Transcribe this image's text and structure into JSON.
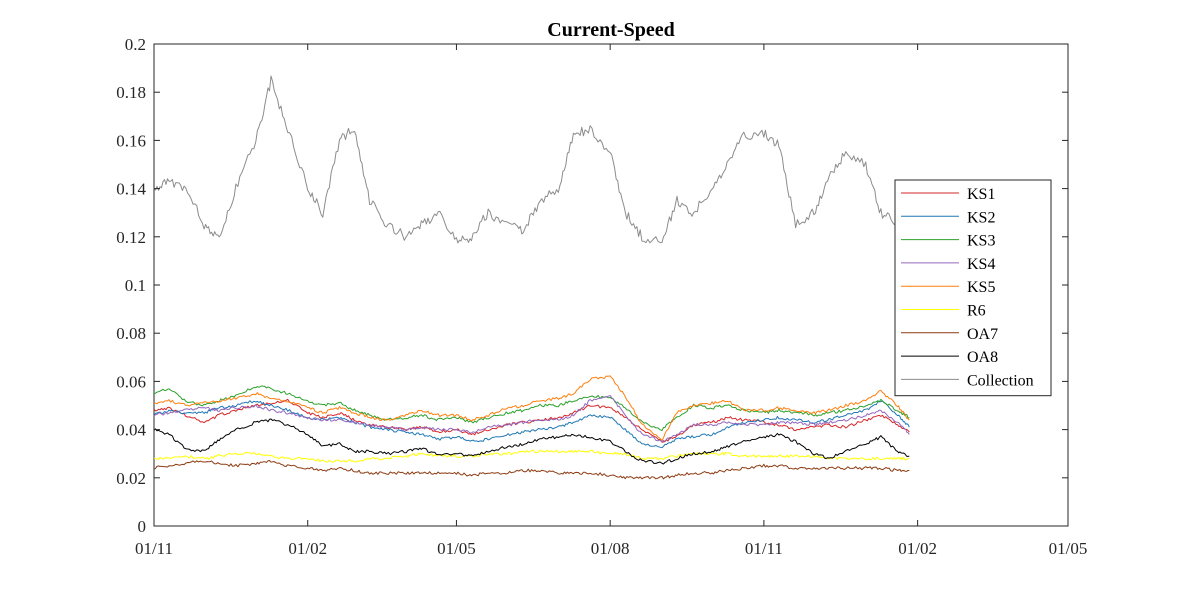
{
  "chart_data": {
    "type": "line",
    "title": "Current-Speed",
    "xlabel": "",
    "ylabel": "",
    "x_ticks": [
      "01/11",
      "01/02",
      "01/05",
      "01/08",
      "01/11",
      "01/02",
      "01/05"
    ],
    "y_ticks": [
      "0",
      "0.02",
      "0.04",
      "0.06",
      "0.08",
      "0.1",
      "0.12",
      "0.14",
      "0.16",
      "0.18",
      "0.2"
    ],
    "ylim": [
      0,
      0.2
    ],
    "xlim": [
      "01/11",
      "01/05"
    ],
    "grid": false,
    "legend_position": "right",
    "x": [
      "2018-11-01",
      "2018-11-10",
      "2018-11-20",
      "2018-12-01",
      "2018-12-10",
      "2018-12-20",
      "2019-01-01",
      "2019-01-10",
      "2019-01-20",
      "2019-02-01",
      "2019-02-10",
      "2019-02-20",
      "2019-03-01",
      "2019-03-10",
      "2019-03-20",
      "2019-04-01",
      "2019-04-10",
      "2019-04-20",
      "2019-05-01",
      "2019-05-10",
      "2019-05-20",
      "2019-06-01",
      "2019-06-10",
      "2019-06-20",
      "2019-07-01",
      "2019-07-10",
      "2019-07-20",
      "2019-08-01",
      "2019-08-10",
      "2019-08-20",
      "2019-09-01",
      "2019-09-10",
      "2019-09-20",
      "2019-10-01",
      "2019-10-10",
      "2019-10-20",
      "2019-11-01",
      "2019-11-10",
      "2019-11-20",
      "2019-12-01",
      "2019-12-10",
      "2019-12-20",
      "2020-01-01",
      "2020-01-10",
      "2020-01-20",
      "2020-01-27"
    ],
    "series": [
      {
        "name": "KS1",
        "color": "#d62728",
        "values": [
          0.048,
          0.049,
          0.046,
          0.043,
          0.046,
          0.048,
          0.05,
          0.051,
          0.052,
          0.047,
          0.045,
          0.047,
          0.044,
          0.042,
          0.041,
          0.04,
          0.041,
          0.039,
          0.04,
          0.038,
          0.04,
          0.042,
          0.043,
          0.044,
          0.045,
          0.047,
          0.05,
          0.049,
          0.045,
          0.04,
          0.035,
          0.037,
          0.042,
          0.043,
          0.045,
          0.044,
          0.043,
          0.042,
          0.04,
          0.041,
          0.042,
          0.041,
          0.044,
          0.046,
          0.042,
          0.039
        ]
      },
      {
        "name": "KS2",
        "color": "#1f77b4",
        "values": [
          0.046,
          0.048,
          0.047,
          0.047,
          0.049,
          0.05,
          0.052,
          0.05,
          0.048,
          0.045,
          0.044,
          0.045,
          0.043,
          0.041,
          0.04,
          0.039,
          0.038,
          0.036,
          0.037,
          0.035,
          0.036,
          0.038,
          0.039,
          0.04,
          0.041,
          0.043,
          0.046,
          0.045,
          0.04,
          0.034,
          0.033,
          0.036,
          0.037,
          0.038,
          0.041,
          0.043,
          0.044,
          0.045,
          0.044,
          0.043,
          0.044,
          0.046,
          0.048,
          0.052,
          0.046,
          0.041
        ]
      },
      {
        "name": "KS3",
        "color": "#2ca02c",
        "values": [
          0.055,
          0.057,
          0.052,
          0.05,
          0.052,
          0.054,
          0.058,
          0.057,
          0.055,
          0.052,
          0.05,
          0.051,
          0.048,
          0.046,
          0.044,
          0.045,
          0.046,
          0.044,
          0.045,
          0.043,
          0.045,
          0.047,
          0.048,
          0.05,
          0.05,
          0.052,
          0.054,
          0.053,
          0.049,
          0.043,
          0.04,
          0.045,
          0.05,
          0.049,
          0.05,
          0.048,
          0.047,
          0.048,
          0.047,
          0.046,
          0.047,
          0.048,
          0.05,
          0.052,
          0.048,
          0.045
        ]
      },
      {
        "name": "KS4",
        "color": "#9467bd",
        "values": [
          0.046,
          0.047,
          0.048,
          0.049,
          0.048,
          0.049,
          0.05,
          0.048,
          0.047,
          0.045,
          0.044,
          0.044,
          0.043,
          0.042,
          0.041,
          0.04,
          0.041,
          0.04,
          0.04,
          0.039,
          0.041,
          0.042,
          0.043,
          0.044,
          0.044,
          0.046,
          0.052,
          0.054,
          0.046,
          0.038,
          0.035,
          0.038,
          0.042,
          0.042,
          0.043,
          0.042,
          0.042,
          0.043,
          0.043,
          0.042,
          0.043,
          0.044,
          0.046,
          0.048,
          0.043,
          0.038
        ]
      },
      {
        "name": "KS5",
        "color": "#ff7f0e",
        "values": [
          0.051,
          0.052,
          0.05,
          0.051,
          0.052,
          0.053,
          0.055,
          0.053,
          0.052,
          0.049,
          0.047,
          0.049,
          0.047,
          0.045,
          0.044,
          0.046,
          0.048,
          0.046,
          0.046,
          0.044,
          0.046,
          0.049,
          0.05,
          0.052,
          0.053,
          0.055,
          0.061,
          0.062,
          0.054,
          0.042,
          0.036,
          0.047,
          0.05,
          0.051,
          0.052,
          0.048,
          0.048,
          0.049,
          0.048,
          0.047,
          0.048,
          0.05,
          0.052,
          0.056,
          0.05,
          0.044
        ]
      },
      {
        "name": "R6",
        "color": "#ffff00",
        "values": [
          0.028,
          0.028,
          0.029,
          0.028,
          0.029,
          0.03,
          0.03,
          0.029,
          0.028,
          0.028,
          0.027,
          0.027,
          0.027,
          0.028,
          0.028,
          0.029,
          0.03,
          0.029,
          0.029,
          0.029,
          0.03,
          0.03,
          0.031,
          0.031,
          0.031,
          0.031,
          0.031,
          0.03,
          0.03,
          0.028,
          0.028,
          0.029,
          0.03,
          0.03,
          0.03,
          0.029,
          0.029,
          0.029,
          0.029,
          0.029,
          0.028,
          0.028,
          0.028,
          0.028,
          0.028,
          0.028
        ]
      },
      {
        "name": "OA7",
        "color": "#8c3b12",
        "values": [
          0.024,
          0.025,
          0.026,
          0.027,
          0.026,
          0.025,
          0.026,
          0.027,
          0.025,
          0.024,
          0.023,
          0.024,
          0.023,
          0.022,
          0.022,
          0.022,
          0.022,
          0.022,
          0.022,
          0.021,
          0.022,
          0.022,
          0.023,
          0.023,
          0.022,
          0.022,
          0.022,
          0.021,
          0.02,
          0.02,
          0.02,
          0.021,
          0.022,
          0.022,
          0.023,
          0.024,
          0.025,
          0.025,
          0.024,
          0.024,
          0.024,
          0.024,
          0.024,
          0.024,
          0.023,
          0.023
        ]
      },
      {
        "name": "OA8",
        "color": "#000000",
        "values": [
          0.04,
          0.038,
          0.032,
          0.031,
          0.036,
          0.04,
          0.043,
          0.044,
          0.042,
          0.038,
          0.033,
          0.034,
          0.031,
          0.031,
          0.03,
          0.031,
          0.032,
          0.03,
          0.03,
          0.029,
          0.031,
          0.033,
          0.034,
          0.036,
          0.037,
          0.038,
          0.037,
          0.035,
          0.031,
          0.027,
          0.026,
          0.028,
          0.03,
          0.031,
          0.033,
          0.035,
          0.037,
          0.038,
          0.035,
          0.03,
          0.028,
          0.031,
          0.034,
          0.037,
          0.031,
          0.029
        ]
      },
      {
        "name": "Collection",
        "color": "#8c8c8c",
        "values": [
          0.14,
          0.143,
          0.14,
          0.125,
          0.12,
          0.14,
          0.16,
          0.185,
          0.165,
          0.14,
          0.13,
          0.16,
          0.165,
          0.135,
          0.125,
          0.12,
          0.125,
          0.13,
          0.118,
          0.12,
          0.13,
          0.125,
          0.122,
          0.135,
          0.14,
          0.162,
          0.165,
          0.155,
          0.13,
          0.12,
          0.118,
          0.135,
          0.13,
          0.14,
          0.15,
          0.162,
          0.163,
          0.158,
          0.125,
          0.13,
          0.145,
          0.155,
          0.15,
          0.13,
          0.125,
          0.12
        ]
      }
    ]
  }
}
